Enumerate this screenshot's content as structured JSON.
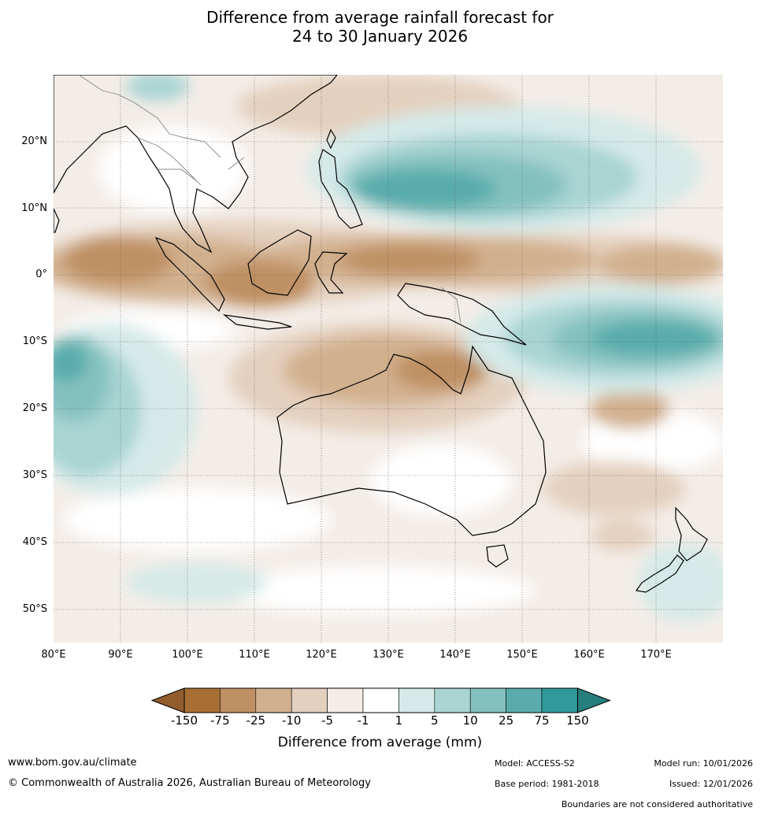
{
  "title": {
    "line1": "Difference from average rainfall forecast for",
    "line2": "24 to 30 January 2026"
  },
  "map": {
    "lon_ticks": [
      "80°E",
      "90°E",
      "100°E",
      "110°E",
      "120°E",
      "130°E",
      "140°E",
      "150°E",
      "160°E",
      "170°E"
    ],
    "lat_ticks": [
      "20°N",
      "10°N",
      "0°",
      "10°S",
      "20°S",
      "30°S",
      "40°S",
      "50°S"
    ],
    "lon_range": [
      80,
      180
    ],
    "lat_range": [
      -55,
      30
    ]
  },
  "colorbar": {
    "title": "Difference from average (mm)",
    "ticks": [
      "-150",
      "-75",
      "-25",
      "-10",
      "-5",
      "-1",
      "1",
      "5",
      "10",
      "25",
      "75",
      "150"
    ],
    "colors": [
      "#a86f35",
      "#bf9063",
      "#d1b08e",
      "#e4d0be",
      "#f3ede8",
      "#ffffff",
      "#d5eae8",
      "#a9d4d2",
      "#83c1c0",
      "#59acab",
      "#30999a"
    ],
    "extend_low": "#925d2d",
    "extend_high": "#257f7d"
  },
  "footer": {
    "url": "www.bom.gov.au/climate",
    "copyright": "© Commonwealth of Australia 2026, Australian Bureau of Meteorology",
    "model": "Model: ACCESS-S2",
    "base_period": "Base period: 1981-2018",
    "model_run": "Model run: 10/01/2026",
    "issued": "Issued: 12/01/2026",
    "disclaimer": "Boundaries are not considered authoritative"
  }
}
